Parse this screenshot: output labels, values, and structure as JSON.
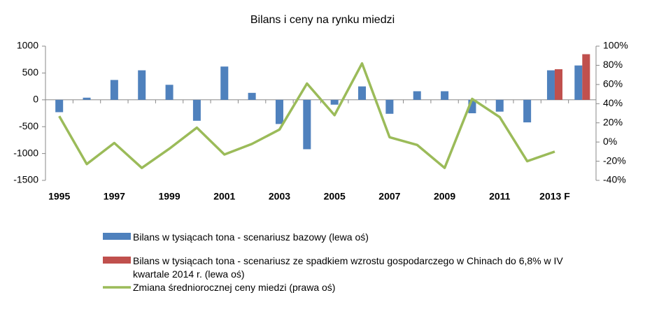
{
  "chart_data": {
    "type": "bar-line",
    "title": "Bilans i ceny na rynku miedzi",
    "categories": [
      "1995",
      null,
      "1997",
      null,
      "1999",
      null,
      "2001",
      null,
      "2003",
      null,
      "2005",
      null,
      "2007",
      null,
      "2009",
      null,
      "2011",
      null,
      "2013 F",
      null
    ],
    "series": [
      {
        "name": "Bilans w tysiącach tona - scenariusz bazowy (lewa oś)",
        "color": "#4f81bd",
        "type": "bar",
        "values": [
          -230,
          40,
          370,
          550,
          280,
          -390,
          620,
          130,
          -450,
          -920,
          -90,
          250,
          -260,
          160,
          160,
          -250,
          -220,
          -420,
          550,
          640
        ]
      },
      {
        "name": "Bilans w tysiącach tona - scenariusz ze spadkiem wzrostu gospodarczego w Chinach do 6,8% w IV kwartale 2014 r. (lewa oś)",
        "color": "#c0504d",
        "type": "bar",
        "values": [
          null,
          null,
          null,
          null,
          null,
          null,
          null,
          null,
          null,
          null,
          null,
          null,
          null,
          null,
          null,
          null,
          null,
          null,
          570,
          850
        ]
      },
      {
        "name": "Zmiana średniorocznej ceny miedzi (prawa oś)",
        "color": "#9bbb59",
        "type": "line",
        "axis": "y2",
        "values": [
          27,
          -23,
          -1,
          -27,
          -7,
          15,
          -13,
          -2,
          13,
          61,
          28,
          82,
          5,
          -3,
          -27,
          45,
          26,
          -20,
          -10,
          null
        ]
      }
    ],
    "ylim": [
      -1500,
      1000
    ],
    "yticks": [
      -1500,
      -1000,
      -500,
      0,
      500,
      1000
    ],
    "y2lim": [
      -40,
      100
    ],
    "y2ticks": [
      {
        "value": -40,
        "label": "-40%"
      },
      {
        "value": -20,
        "label": "-20%"
      },
      {
        "value": 0,
        "label": "0%"
      },
      {
        "value": 20,
        "label": "20%"
      },
      {
        "value": 40,
        "label": "40%"
      },
      {
        "value": 60,
        "label": "60%"
      },
      {
        "value": 80,
        "label": "80%"
      },
      {
        "value": 100,
        "label": "100%"
      }
    ]
  }
}
